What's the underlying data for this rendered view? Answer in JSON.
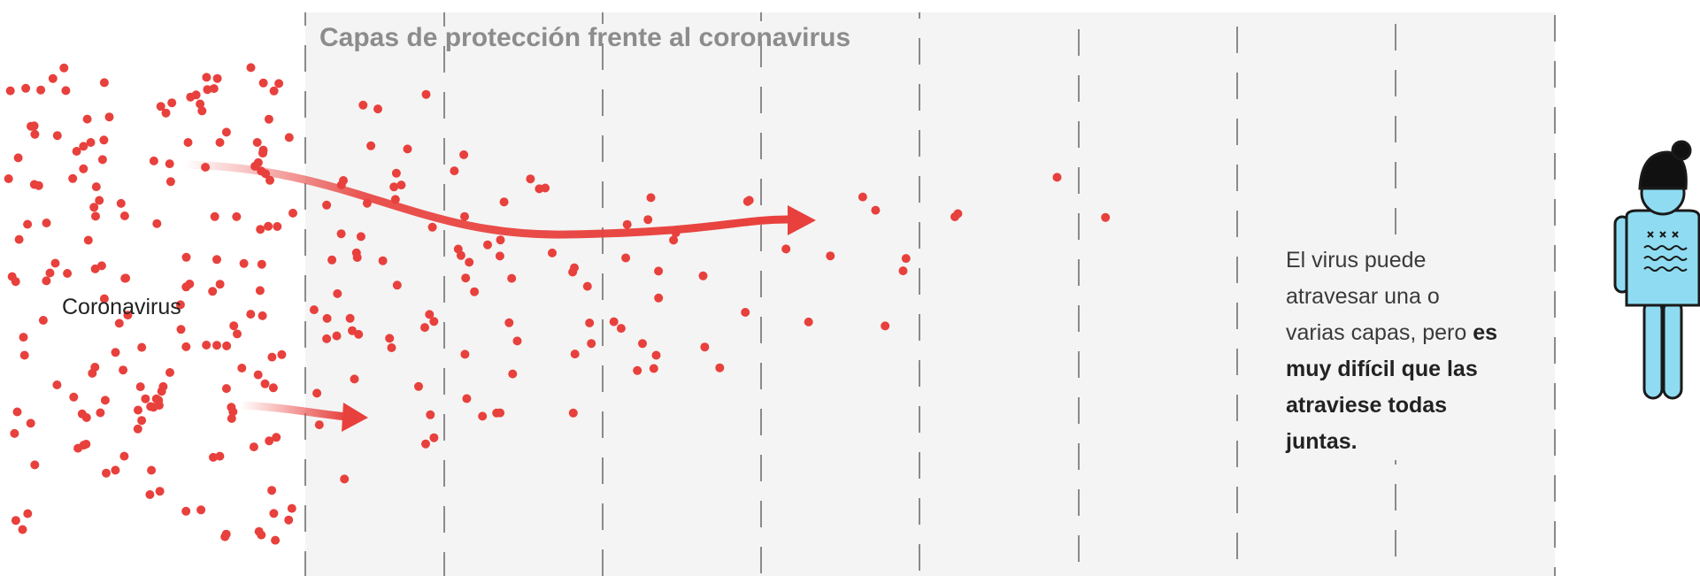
{
  "title": "Capas de protección frente al coronavirus",
  "labels": {
    "source": "Coronavirus"
  },
  "note": {
    "text": "El virus puede atravesar una o varias capas, pero",
    "emphasis": "es muy difícil que las atraviese todas juntas."
  }
}
